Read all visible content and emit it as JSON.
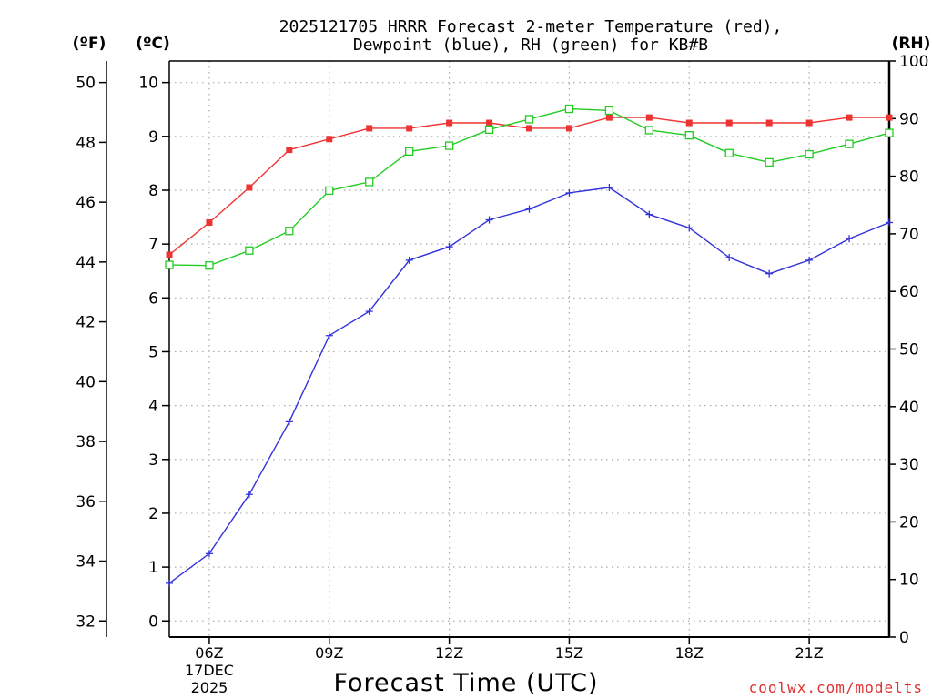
{
  "chart_data": {
    "type": "line",
    "title_line1": "2025121705 HRRR Forecast 2-meter Temperature (red),",
    "title_line2": "Dewpoint (blue), RH (green) for KB#B",
    "xlabel": "Forecast Time (UTC)",
    "unit_labels": {
      "f": "(ºF)",
      "c": "(ºC)",
      "rh": "(RH)"
    },
    "watermark": "coolwx.com/modelts",
    "x_hours": [
      5,
      6,
      7,
      8,
      9,
      10,
      11,
      12,
      13,
      14,
      15,
      16,
      17,
      18,
      19,
      20,
      21,
      22,
      23
    ],
    "xlim": [
      5,
      23
    ],
    "x_ticks": [
      {
        "hour": 6,
        "label": "06Z",
        "sub1": "17DEC",
        "sub2": "2025"
      },
      {
        "hour": 9,
        "label": "09Z"
      },
      {
        "hour": 12,
        "label": "12Z"
      },
      {
        "hour": 15,
        "label": "15Z"
      },
      {
        "hour": 18,
        "label": "18Z"
      },
      {
        "hour": 21,
        "label": "21Z"
      }
    ],
    "ylim_c": [
      -0.3,
      10.4
    ],
    "y_ticks_c": [
      0,
      1,
      2,
      3,
      4,
      5,
      6,
      7,
      8,
      9,
      10
    ],
    "y_ticks_f": [
      32,
      34,
      36,
      38,
      40,
      42,
      44,
      46,
      48,
      50
    ],
    "ylim_rh": [
      0,
      100
    ],
    "y_ticks_rh": [
      0,
      10,
      20,
      30,
      40,
      50,
      60,
      70,
      80,
      90,
      100
    ],
    "colors": {
      "temperature": "#ee3333",
      "dewpoint": "#3333dd",
      "rh": "#22cc22",
      "grid": "#aaaaaa"
    },
    "series": [
      {
        "name": "Temperature",
        "unit": "C",
        "values": [
          6.8,
          7.4,
          8.05,
          8.75,
          8.95,
          9.15,
          9.15,
          9.25,
          9.25,
          9.15,
          9.15,
          9.35,
          9.35,
          9.25,
          9.25,
          9.25,
          9.25,
          9.35,
          9.35
        ]
      },
      {
        "name": "Dewpoint",
        "unit": "C",
        "values": [
          0.7,
          1.25,
          2.35,
          3.7,
          5.3,
          5.75,
          6.7,
          6.95,
          7.45,
          7.65,
          7.95,
          8.05,
          7.55,
          7.3,
          6.75,
          6.45,
          6.7,
          7.1,
          7.4
        ]
      },
      {
        "name": "RH",
        "unit": "%",
        "values": [
          64.6,
          64.5,
          67.1,
          70.5,
          77.5,
          79.0,
          84.3,
          85.3,
          88.1,
          89.9,
          91.7,
          91.4,
          88.0,
          87.1,
          84.0,
          82.4,
          83.8,
          85.6,
          87.5
        ]
      }
    ]
  }
}
